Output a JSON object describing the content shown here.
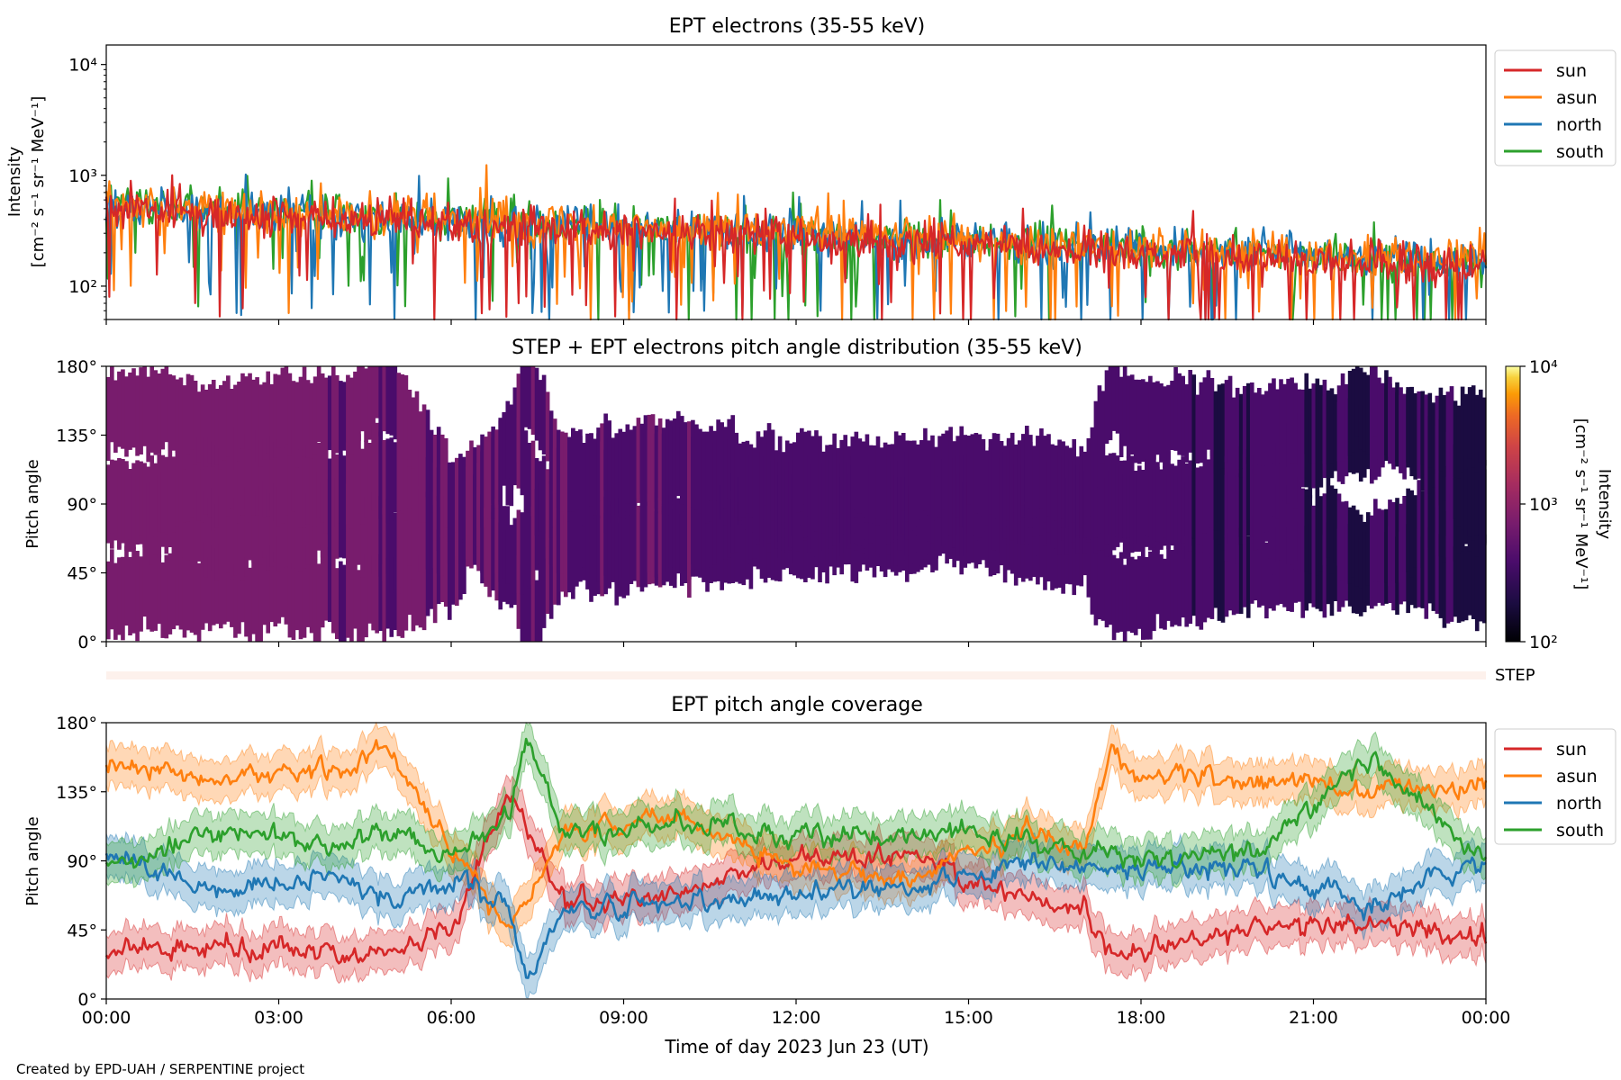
{
  "figure": {
    "footer": "Created by EPD-UAH / SERPENTINE project",
    "xlabel": "Time of day 2023 Jun 23 (UT)",
    "x_ticks": [
      "00:00",
      "03:00",
      "06:00",
      "09:00",
      "12:00",
      "15:00",
      "18:00",
      "21:00",
      "00:00"
    ]
  },
  "colors": {
    "sun": "#d62728",
    "asun": "#ff7f0e",
    "north": "#1f77b4",
    "south": "#2ca02c",
    "step_bar": "#fdf1ec"
  },
  "chart_data": [
    {
      "type": "line",
      "title": "EPT electrons (35-55 keV)",
      "ylabel": "Intensity",
      "ylabel_units": "[cm⁻² s⁻¹ sr⁻¹ MeV⁻¹]",
      "xlim_hours": [
        0,
        24
      ],
      "ylim": [
        50,
        15000
      ],
      "yscale": "log",
      "y_ticks": [
        {
          "value": 100,
          "label": "10²"
        },
        {
          "value": 1000,
          "label": "10³"
        },
        {
          "value": 10000,
          "label": "10⁴"
        }
      ],
      "legend_position": "outside-right",
      "series": [
        {
          "name": "sun",
          "color": "#d62728",
          "typical_start": 500,
          "typical_end": 150
        },
        {
          "name": "asun",
          "color": "#ff7f0e",
          "typical_start": 550,
          "typical_end": 170
        },
        {
          "name": "north",
          "color": "#1f77b4",
          "typical_start": 520,
          "typical_end": 160
        },
        {
          "name": "south",
          "color": "#2ca02c",
          "typical_start": 560,
          "typical_end": 160
        }
      ]
    },
    {
      "type": "heatmap",
      "title": "STEP + EPT electrons pitch angle distribution (35-55 keV)",
      "ylabel": "Pitch angle",
      "ylim": [
        0,
        180
      ],
      "y_ticks": [
        "0°",
        "45°",
        "90°",
        "135°",
        "180°"
      ],
      "colorbar": {
        "label": "Intensity",
        "units": "[cm⁻² s⁻¹ sr⁻¹ MeV⁻¹]",
        "scale": "log",
        "range": [
          100,
          10000
        ],
        "ticks": [
          {
            "value": 100,
            "label": "10²"
          },
          {
            "value": 1000,
            "label": "10³"
          },
          {
            "value": 10000,
            "label": "10⁴"
          }
        ],
        "colormap": "inferno"
      },
      "step_label": "STEP"
    },
    {
      "type": "line",
      "title": "EPT pitch angle coverage",
      "ylabel": "Pitch angle",
      "xlim_hours": [
        0,
        24
      ],
      "ylim": [
        0,
        180
      ],
      "y_ticks": [
        "0°",
        "45°",
        "90°",
        "135°",
        "180°"
      ],
      "legend_position": "outside-right",
      "series": [
        {
          "name": "sun",
          "color": "#d62728",
          "x_hours": [
            0,
            2,
            4,
            5,
            6,
            7,
            8,
            10,
            12,
            14,
            16,
            17,
            17.5,
            18,
            20,
            22,
            24
          ],
          "values": [
            30,
            35,
            30,
            30,
            45,
            135,
            60,
            70,
            90,
            95,
            65,
            60,
            25,
            35,
            45,
            50,
            40
          ]
        },
        {
          "name": "asun",
          "color": "#ff7f0e",
          "x_hours": [
            0,
            2,
            4,
            5,
            6,
            7,
            8,
            10,
            12,
            14,
            16,
            17,
            17.5,
            18,
            20,
            22,
            24
          ],
          "values": [
            150,
            145,
            150,
            160,
            100,
            45,
            110,
            120,
            85,
            80,
            110,
            100,
            160,
            145,
            145,
            135,
            140
          ]
        },
        {
          "name": "north",
          "color": "#1f77b4",
          "x_hours": [
            0,
            2,
            4,
            5,
            6,
            7,
            7.3,
            8,
            10,
            12,
            14,
            16,
            18,
            20,
            22,
            24
          ],
          "values": [
            95,
            70,
            80,
            65,
            80,
            60,
            10,
            60,
            60,
            70,
            75,
            85,
            85,
            85,
            60,
            90
          ]
        },
        {
          "name": "south",
          "color": "#2ca02c",
          "x_hours": [
            0,
            2,
            4,
            5,
            6,
            7,
            7.3,
            8,
            10,
            12,
            14,
            16,
            18,
            20,
            22,
            24
          ],
          "values": [
            85,
            110,
            100,
            110,
            90,
            120,
            170,
            105,
            115,
            105,
            110,
            105,
            90,
            95,
            155,
            90
          ]
        }
      ]
    }
  ]
}
